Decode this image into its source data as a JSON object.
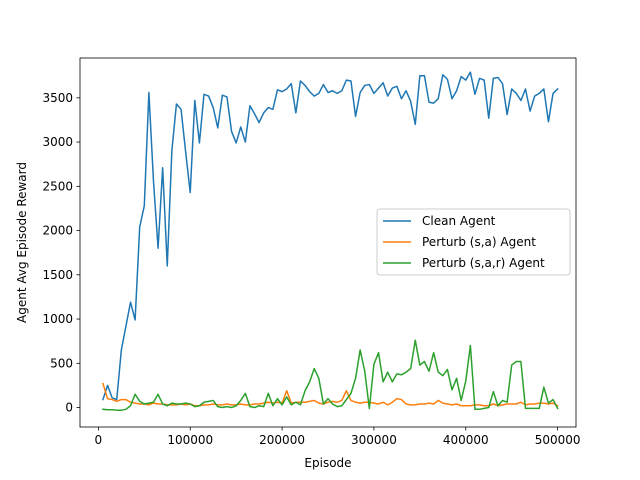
{
  "chart_data": {
    "type": "line",
    "xlabel": "Episode",
    "ylabel": "Agent Avg Episode Reward",
    "xlim": [
      -20000,
      520000
    ],
    "ylim": [
      -220,
      3950
    ],
    "xticks": [
      0,
      100000,
      200000,
      300000,
      400000,
      500000
    ],
    "xtick_labels": [
      "0",
      "100000",
      "200000",
      "300000",
      "400000",
      "500000"
    ],
    "yticks": [
      0,
      500,
      1000,
      1500,
      2000,
      2500,
      3000,
      3500
    ],
    "ytick_labels": [
      "0",
      "500",
      "1000",
      "1500",
      "2000",
      "2500",
      "3000",
      "3500"
    ],
    "grid": false,
    "legend_position": "center-right",
    "x": [
      5000,
      10000,
      15000,
      20000,
      25000,
      30000,
      35000,
      40000,
      45000,
      50000,
      55000,
      60000,
      65000,
      70000,
      75000,
      80000,
      85000,
      90000,
      95000,
      100000,
      105000,
      110000,
      115000,
      120000,
      125000,
      130000,
      135000,
      140000,
      145000,
      150000,
      155000,
      160000,
      165000,
      170000,
      175000,
      180000,
      185000,
      190000,
      195000,
      200000,
      205000,
      210000,
      215000,
      220000,
      225000,
      230000,
      235000,
      240000,
      245000,
      250000,
      255000,
      260000,
      265000,
      270000,
      275000,
      280000,
      285000,
      290000,
      295000,
      300000,
      305000,
      310000,
      315000,
      320000,
      325000,
      330000,
      335000,
      340000,
      345000,
      350000,
      355000,
      360000,
      365000,
      370000,
      375000,
      380000,
      385000,
      390000,
      395000,
      400000,
      405000,
      410000,
      415000,
      420000,
      425000,
      430000,
      435000,
      440000,
      445000,
      450000,
      455000,
      460000,
      465000,
      470000,
      475000,
      480000,
      485000,
      490000,
      495000,
      500000
    ],
    "series": [
      {
        "name": "Clean Agent",
        "color": "#1f77b4",
        "values": [
          90,
          250,
          110,
          90,
          650,
          920,
          1190,
          990,
          2040,
          2280,
          3560,
          2560,
          1800,
          2710,
          1600,
          2900,
          3430,
          3370,
          2890,
          2430,
          3470,
          2990,
          3540,
          3520,
          3390,
          3160,
          3530,
          3510,
          3120,
          2990,
          3170,
          3000,
          3410,
          3320,
          3220,
          3330,
          3390,
          3370,
          3590,
          3570,
          3600,
          3660,
          3330,
          3690,
          3640,
          3570,
          3520,
          3550,
          3650,
          3560,
          3580,
          3550,
          3580,
          3700,
          3690,
          3290,
          3560,
          3640,
          3650,
          3550,
          3610,
          3670,
          3520,
          3610,
          3630,
          3490,
          3580,
          3460,
          3200,
          3750,
          3750,
          3450,
          3440,
          3490,
          3760,
          3710,
          3490,
          3580,
          3740,
          3700,
          3790,
          3540,
          3720,
          3700,
          3270,
          3720,
          3730,
          3660,
          3310,
          3600,
          3550,
          3470,
          3600,
          3350,
          3520,
          3550,
          3600,
          3230,
          3550,
          3600
        ]
      },
      {
        "name": "Perturb (s,a) Agent",
        "color": "#ff7f0e",
        "values": [
          270,
          100,
          90,
          70,
          90,
          90,
          60,
          50,
          40,
          40,
          30,
          50,
          40,
          40,
          30,
          30,
          30,
          40,
          30,
          40,
          20,
          20,
          30,
          30,
          40,
          30,
          30,
          40,
          30,
          30,
          40,
          30,
          30,
          40,
          40,
          50,
          60,
          50,
          60,
          50,
          190,
          50,
          60,
          60,
          60,
          70,
          80,
          50,
          40,
          60,
          70,
          60,
          80,
          190,
          80,
          60,
          50,
          60,
          60,
          50,
          40,
          60,
          30,
          60,
          100,
          90,
          40,
          30,
          30,
          40,
          40,
          50,
          40,
          80,
          50,
          40,
          30,
          40,
          20,
          20,
          20,
          30,
          30,
          20,
          20,
          40,
          20,
          30,
          40,
          40,
          40,
          60,
          30,
          40,
          40,
          50,
          50,
          40,
          50,
          20
        ]
      },
      {
        "name": "Perturb (s,a,r) Agent",
        "color": "#2ca02c",
        "values": [
          -20,
          -25,
          -25,
          -30,
          -30,
          -20,
          20,
          150,
          70,
          40,
          50,
          60,
          150,
          40,
          20,
          50,
          40,
          40,
          50,
          40,
          10,
          20,
          60,
          70,
          80,
          10,
          0,
          10,
          0,
          20,
          80,
          160,
          10,
          0,
          20,
          10,
          160,
          20,
          100,
          30,
          120,
          30,
          60,
          30,
          190,
          290,
          440,
          330,
          40,
          100,
          40,
          10,
          20,
          90,
          160,
          330,
          650,
          410,
          -10,
          490,
          620,
          290,
          400,
          290,
          380,
          370,
          400,
          440,
          760,
          480,
          520,
          410,
          620,
          400,
          360,
          430,
          200,
          330,
          80,
          300,
          700,
          -20,
          -20,
          -10,
          0,
          180,
          20,
          80,
          60,
          480,
          520,
          520,
          -10,
          -10,
          -10,
          -10,
          230,
          50,
          90,
          -10
        ]
      }
    ]
  }
}
